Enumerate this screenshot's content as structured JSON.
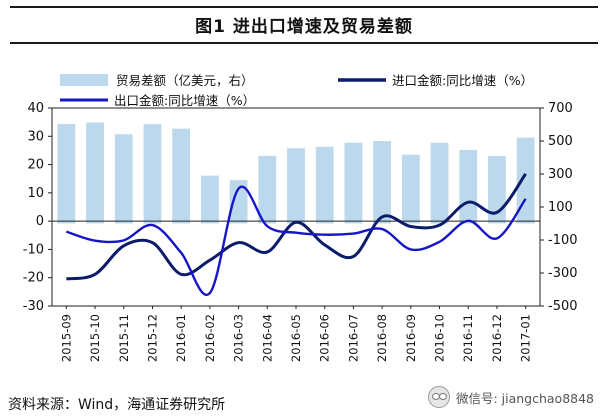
{
  "title": "图1   进出口增速及贸易差额",
  "footer": "资料来源：Wind，海通证券研究所",
  "watermark": "微信号: jiangchao8848",
  "chart_data": {
    "type": "bar+line",
    "categories": [
      "2015-09",
      "2015-10",
      "2015-11",
      "2015-12",
      "2016-01",
      "2016-02",
      "2016-03",
      "2016-04",
      "2016-05",
      "2016-06",
      "2016-07",
      "2016-08",
      "2016-09",
      "2016-10",
      "2016-11",
      "2016-12",
      "2017-01"
    ],
    "left_axis": {
      "min": -30,
      "max": 40,
      "ticks": [
        40,
        30,
        20,
        10,
        0,
        -10,
        -20,
        -30
      ]
    },
    "right_axis": {
      "min": -500,
      "max": 700,
      "ticks": [
        700,
        500,
        300,
        100,
        -100,
        -300,
        -500
      ]
    },
    "series": [
      {
        "name": "贸易差额（亿美元，右）",
        "type": "bar",
        "axis": "right",
        "color": "#bcd8ec",
        "values": [
          603,
          612,
          541,
          602,
          575,
          290,
          263,
          410,
          456,
          465,
          490,
          500,
          417,
          490,
          446,
          409,
          520
        ]
      },
      {
        "name": "进口金额:同比增速（%）",
        "type": "line",
        "axis": "left",
        "color": "#0d1b6b",
        "values": [
          -20.4,
          -18.8,
          -8.7,
          -7.6,
          -18.8,
          -13.8,
          -7.6,
          -10.9,
          -0.4,
          -8.4,
          -12.5,
          1.5,
          -1.9,
          -1.4,
          6.7,
          3.1,
          16.7
        ]
      },
      {
        "name": "出口金额:同比增速（%）",
        "type": "line",
        "axis": "left",
        "color": "#1616c8",
        "values": [
          -3.7,
          -6.9,
          -6.8,
          -1.4,
          -11.2,
          -25.4,
          11.5,
          -1.8,
          -4.1,
          -4.8,
          -4.4,
          -2.8,
          -10.0,
          -7.3,
          0.1,
          -6.1,
          7.9
        ]
      }
    ]
  }
}
